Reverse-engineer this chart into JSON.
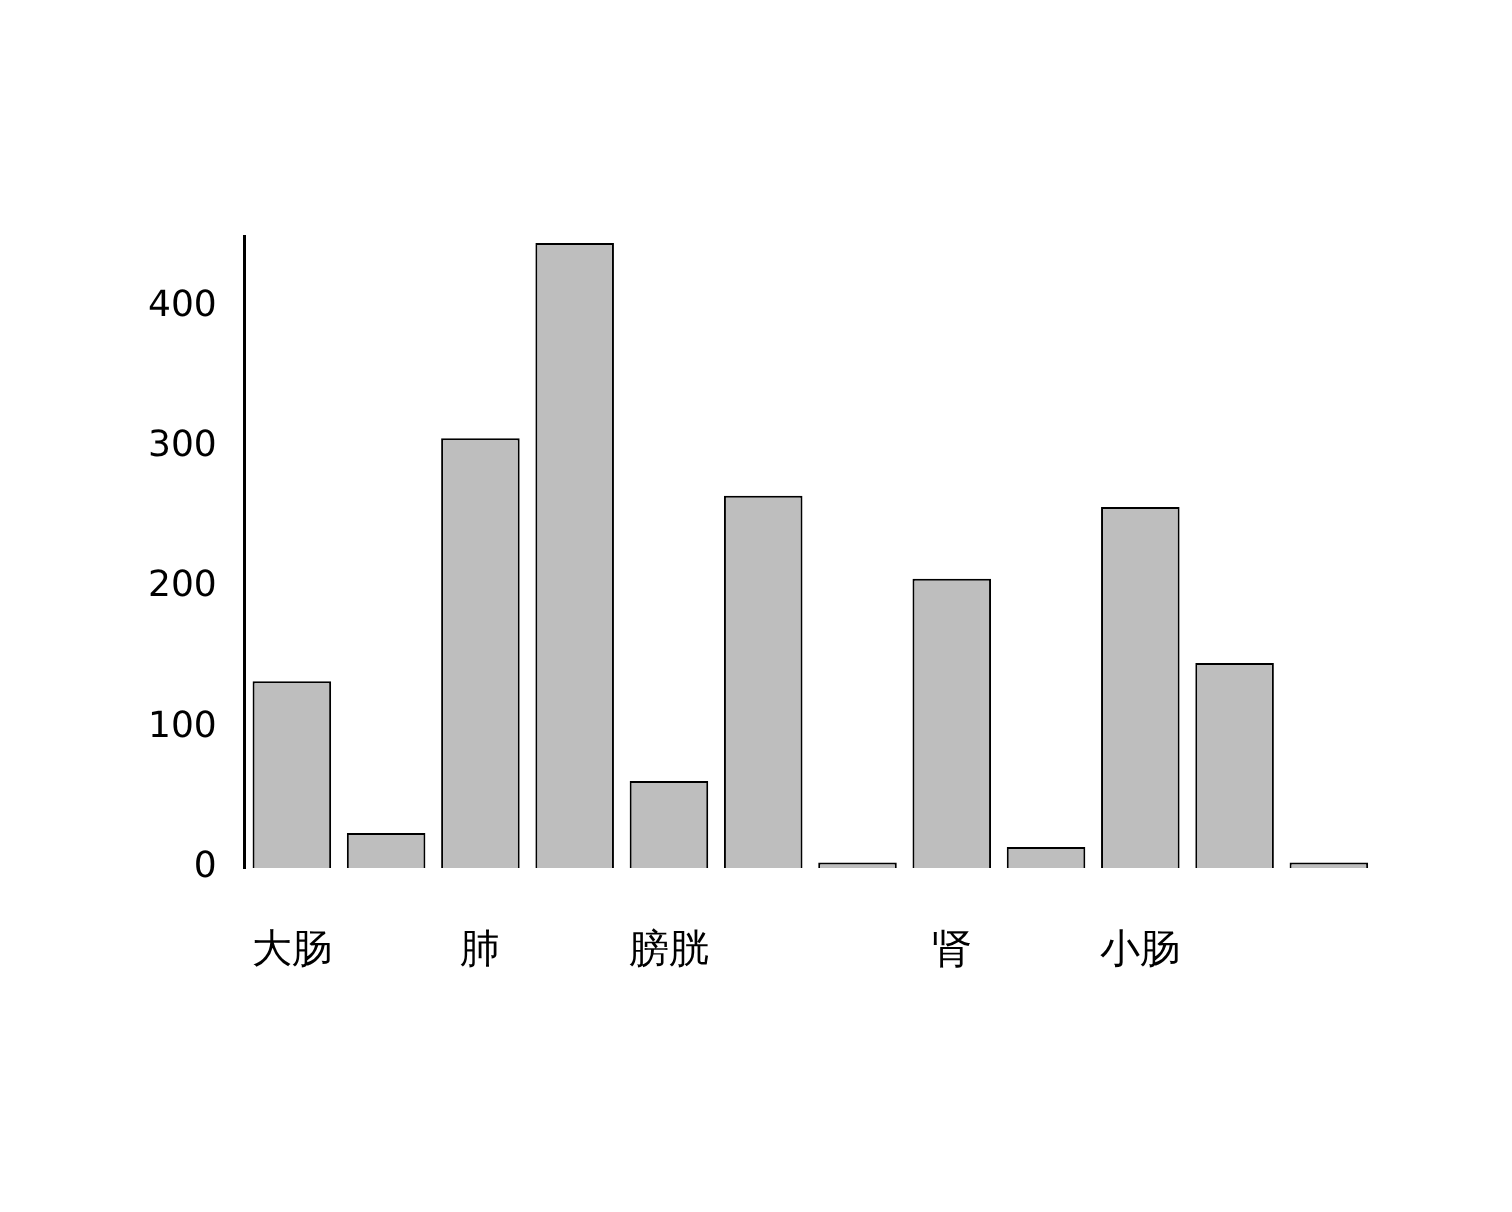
{
  "chart_data": {
    "type": "bar",
    "categories": [
      "大肠",
      null,
      "肺",
      null,
      "膀胱",
      null,
      null,
      "肾",
      null,
      "小肠",
      null,
      null
    ],
    "values": [
      133,
      25,
      306,
      445,
      62,
      265,
      4,
      206,
      15,
      257,
      146,
      4
    ],
    "color": "#bebebe",
    "ylim": [
      0,
      450
    ],
    "yticks": [
      0,
      100,
      200,
      300,
      400
    ],
    "grid": false,
    "legend": false
  }
}
